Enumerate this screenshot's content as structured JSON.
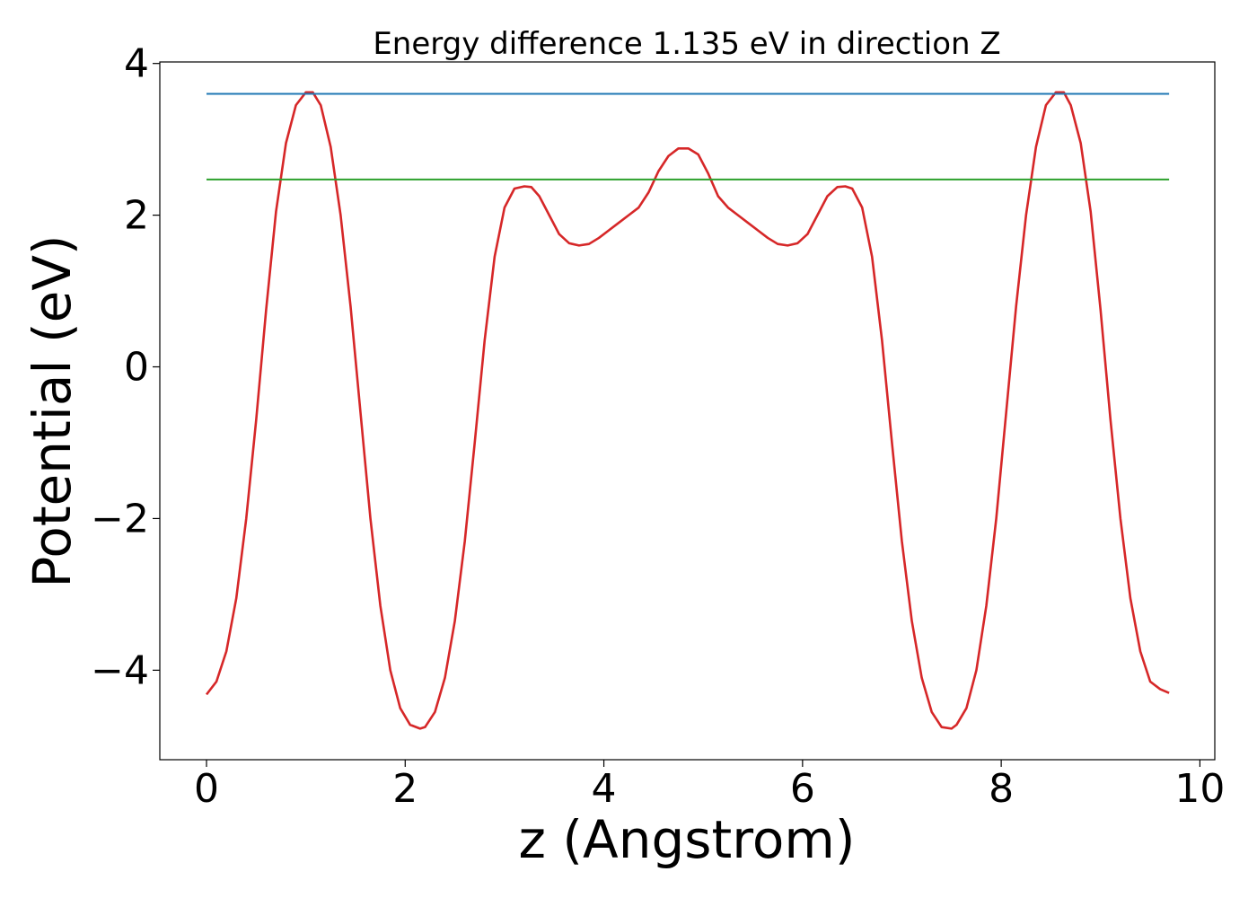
{
  "chart_data": {
    "type": "line",
    "title": "Energy difference 1.135 eV in direction Z",
    "xlabel": "z (Angstrom)",
    "ylabel": "Potential (eV)",
    "xlim": [
      -0.47,
      10.15
    ],
    "ylim": [
      -5.18,
      4.02
    ],
    "xticks": [
      0,
      2,
      4,
      6,
      8,
      10
    ],
    "yticks": [
      -4,
      -2,
      0,
      2,
      4
    ],
    "xtick_labels": [
      "0",
      "2",
      "4",
      "6",
      "8",
      "10"
    ],
    "ytick_labels": [
      "−4",
      "−2",
      "0",
      "2",
      "4"
    ],
    "grid": false,
    "series": [
      {
        "color": "#d62728",
        "x": [
          0.0,
          0.1,
          0.2,
          0.3,
          0.4,
          0.5,
          0.6,
          0.7,
          0.8,
          0.9,
          1.0,
          1.07,
          1.15,
          1.25,
          1.35,
          1.45,
          1.55,
          1.65,
          1.75,
          1.85,
          1.95,
          2.05,
          2.15,
          2.2,
          2.3,
          2.4,
          2.5,
          2.6,
          2.7,
          2.8,
          2.9,
          3.0,
          3.1,
          3.2,
          3.27,
          3.35,
          3.45,
          3.55,
          3.65,
          3.75,
          3.85,
          3.95,
          4.05,
          4.15,
          4.25,
          4.35,
          4.45,
          4.55,
          4.65,
          4.75,
          4.85,
          4.95,
          5.05,
          5.15,
          5.25,
          5.35,
          5.45,
          5.55,
          5.65,
          5.75,
          5.85,
          5.95,
          6.05,
          6.15,
          6.25,
          6.35,
          6.43,
          6.5,
          6.6,
          6.7,
          6.8,
          6.9,
          7.0,
          7.1,
          7.2,
          7.3,
          7.4,
          7.5,
          7.55,
          7.65,
          7.75,
          7.85,
          7.95,
          8.05,
          8.15,
          8.25,
          8.35,
          8.45,
          8.55,
          8.63,
          8.7,
          8.8,
          8.9,
          9.0,
          9.1,
          9.2,
          9.3,
          9.4,
          9.5,
          9.6,
          9.69
        ],
        "y": [
          -4.32,
          -4.15,
          -3.75,
          -3.05,
          -2.0,
          -0.7,
          0.75,
          2.05,
          2.95,
          3.45,
          3.62,
          3.62,
          3.45,
          2.9,
          2.0,
          0.8,
          -0.6,
          -2.0,
          -3.15,
          -4.0,
          -4.5,
          -4.72,
          -4.77,
          -4.75,
          -4.55,
          -4.1,
          -3.35,
          -2.3,
          -1.0,
          0.35,
          1.45,
          2.1,
          2.35,
          2.38,
          2.37,
          2.25,
          2.0,
          1.75,
          1.63,
          1.6,
          1.62,
          1.7,
          1.8,
          1.9,
          2.0,
          2.1,
          2.3,
          2.58,
          2.78,
          2.88,
          2.88,
          2.8,
          2.55,
          2.25,
          2.1,
          2.0,
          1.9,
          1.8,
          1.7,
          1.62,
          1.6,
          1.63,
          1.75,
          2.0,
          2.25,
          2.37,
          2.38,
          2.35,
          2.1,
          1.45,
          0.35,
          -1.0,
          -2.3,
          -3.35,
          -4.1,
          -4.55,
          -4.75,
          -4.77,
          -4.72,
          -4.5,
          -4.0,
          -3.15,
          -2.0,
          -0.6,
          0.8,
          2.0,
          2.9,
          3.45,
          3.62,
          3.62,
          3.45,
          2.95,
          2.05,
          0.75,
          -0.7,
          -2.0,
          -3.05,
          -3.75,
          -4.15,
          -4.25,
          -4.3
        ]
      },
      {
        "color": "#1f77b4",
        "x": [
          0.0,
          9.69
        ],
        "y": [
          3.6,
          3.6
        ]
      },
      {
        "color": "#2ca02c",
        "x": [
          0.0,
          9.69
        ],
        "y": [
          2.47,
          2.47
        ]
      }
    ]
  }
}
